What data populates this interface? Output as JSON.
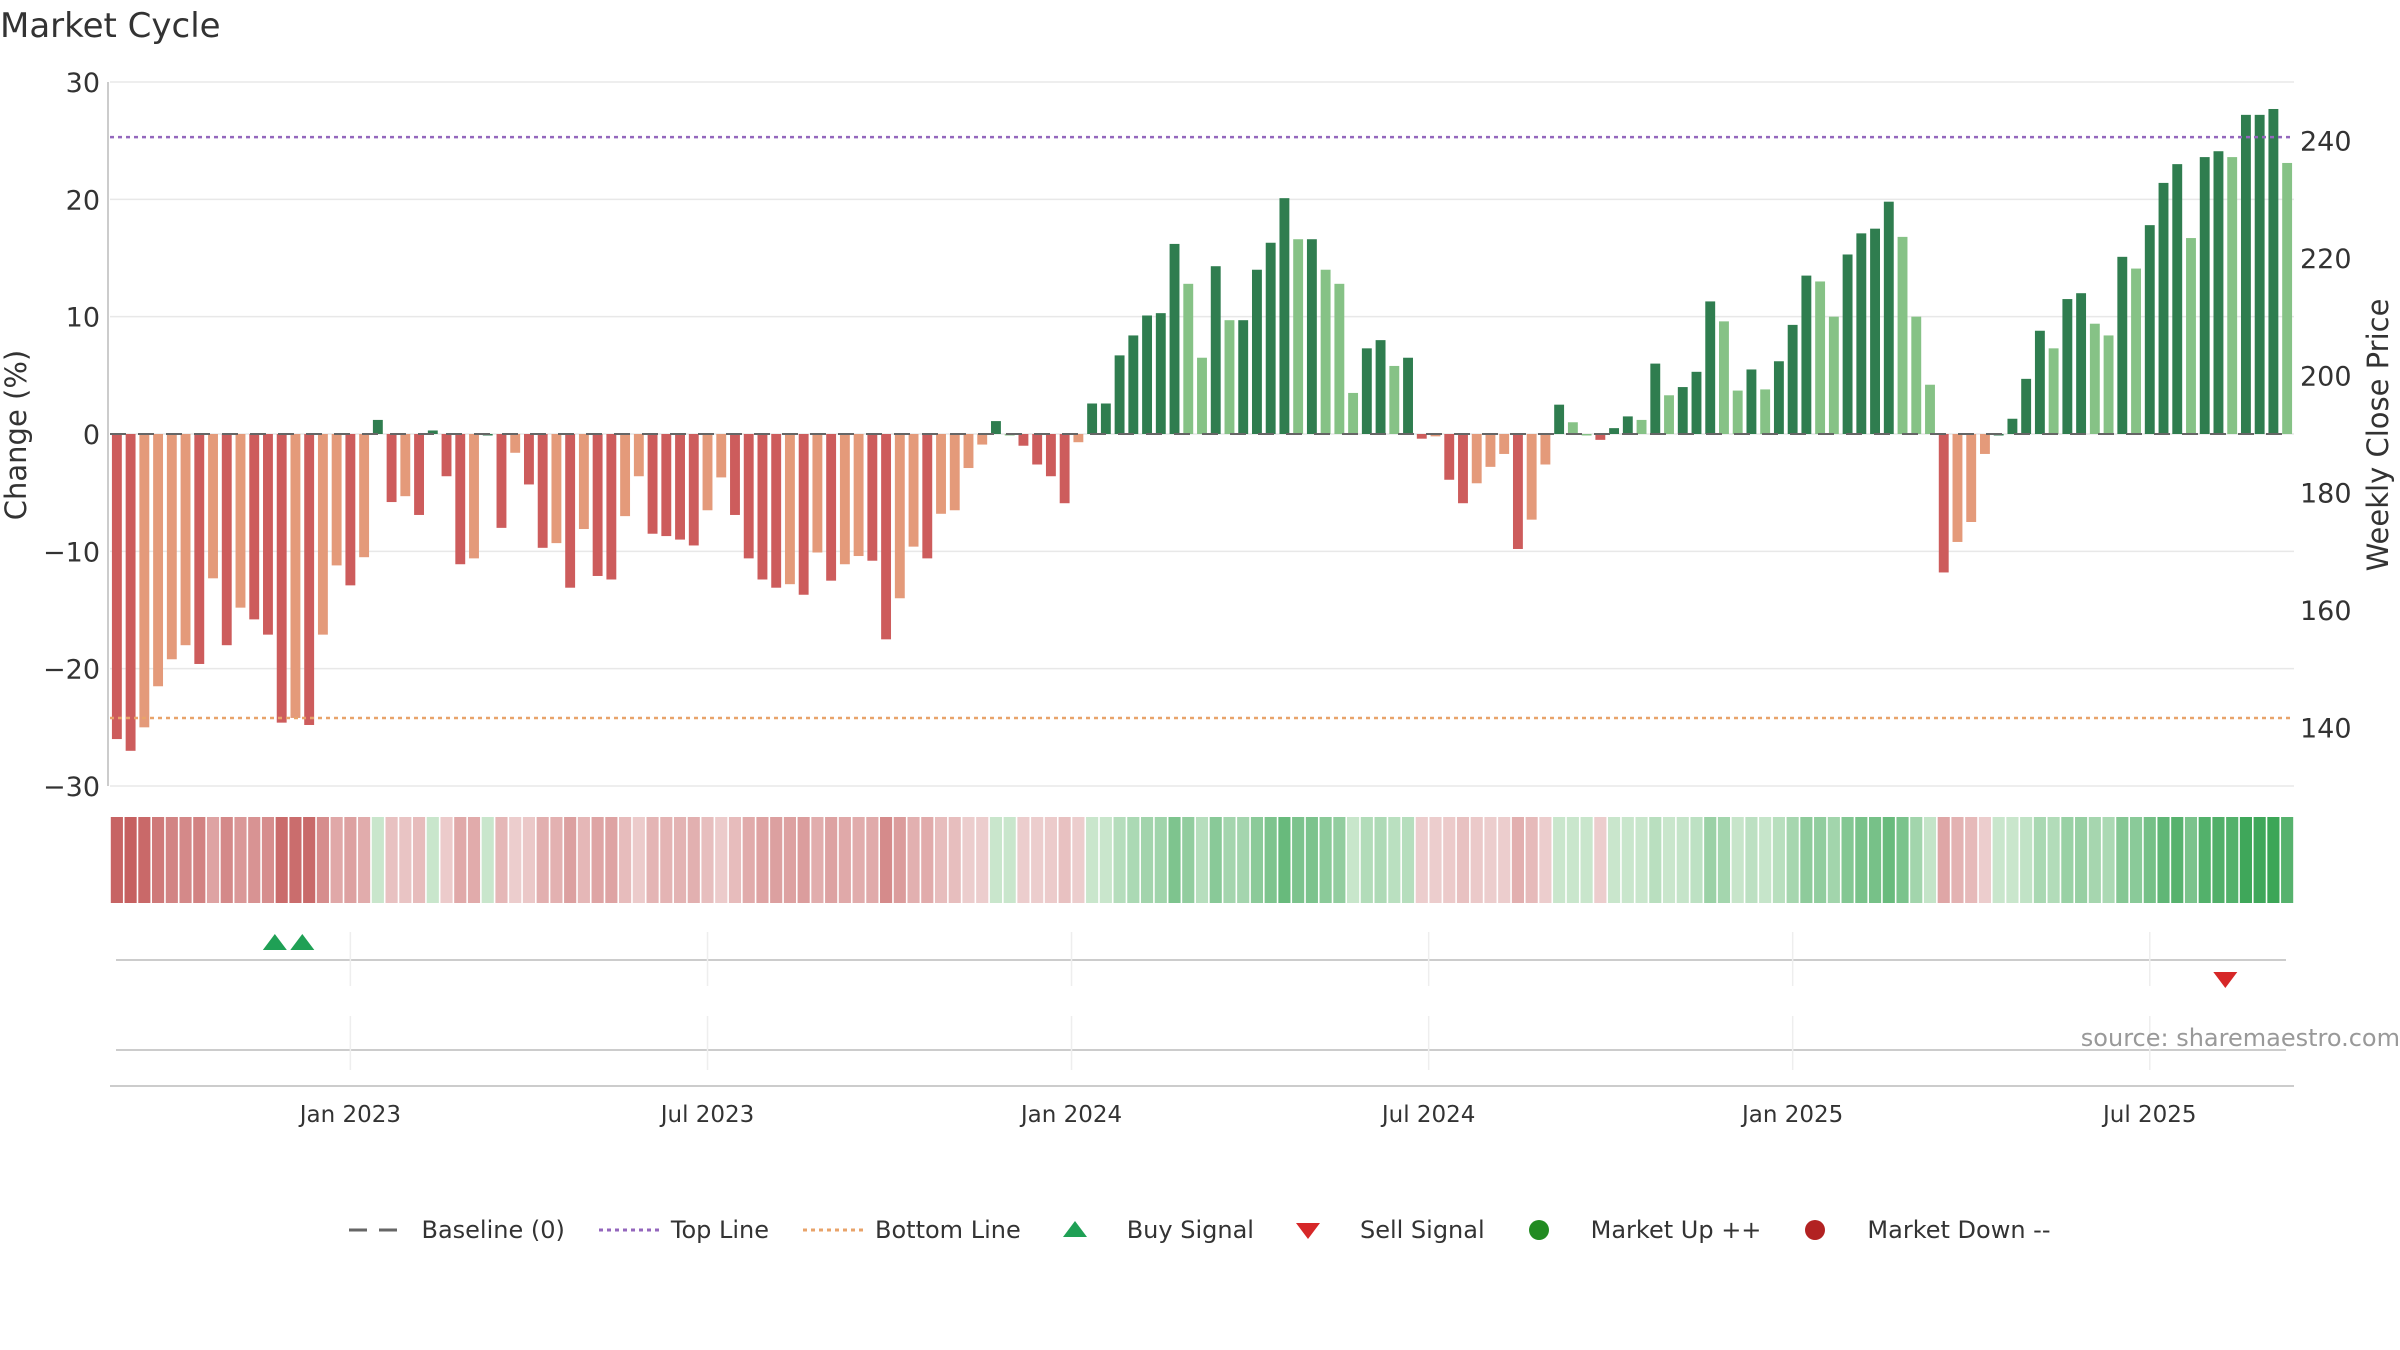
{
  "title": "Market Cycle",
  "source": "source: sharemaestro.com",
  "chart_data": {
    "type": "bar",
    "y_label": "Change (%)",
    "y2_label": "Weekly Close Price",
    "y_ticks": [
      "30",
      "20",
      "10",
      "0",
      "−10",
      "−20",
      "−30"
    ],
    "y_tick_values": [
      30,
      20,
      10,
      0,
      -10,
      -20,
      -30
    ],
    "ylim": [
      -30,
      30
    ],
    "y2_ticks": [
      "240",
      "220",
      "200",
      "180",
      "160",
      "140"
    ],
    "y2_tick_values": [
      240,
      220,
      200,
      180,
      160,
      140
    ],
    "y2lim": [
      130,
      250
    ],
    "x_ticks": [
      "Jan 2023",
      "Jul 2023",
      "Jan 2024",
      "Jul 2024",
      "Jan 2025",
      "Jul 2025"
    ],
    "x_tick_weeks": [
      17.5,
      43.5,
      70,
      96,
      122.5,
      148.5
    ],
    "top_line": 25.3,
    "bottom_line": -24.2,
    "values": [
      -26,
      -27,
      -25,
      -21.5,
      -19.2,
      -18,
      -19.6,
      -12.3,
      -18,
      -14.8,
      -15.8,
      -17.1,
      -24.6,
      -24.2,
      -24.8,
      -17.1,
      -11.2,
      -12.9,
      -10.5,
      1.2,
      -5.8,
      -5.3,
      -6.9,
      0.3,
      -3.6,
      -11.1,
      -10.6,
      0,
      -8,
      -1.6,
      -4.3,
      -9.7,
      -9.3,
      -13.1,
      -8.1,
      -12.1,
      -12.4,
      -7,
      -3.6,
      -8.5,
      -8.7,
      -9,
      -9.5,
      -6.5,
      -3.7,
      -6.9,
      -10.6,
      -12.4,
      -13.1,
      -12.8,
      -13.7,
      -10.1,
      -12.5,
      -11.1,
      -10.4,
      -10.8,
      -17.5,
      -14,
      -9.6,
      -10.6,
      -6.8,
      -6.5,
      -2.9,
      -0.9,
      1.1,
      0,
      -1,
      -2.6,
      -3.6,
      -5.9,
      -0.7,
      2.6,
      2.6,
      6.7,
      8.4,
      10.1,
      10.3,
      16.2,
      12.8,
      6.5,
      14.3,
      9.7,
      9.7,
      14,
      16.3,
      20.1,
      16.6,
      16.6,
      14,
      12.8,
      3.5,
      7.3,
      8,
      5.8,
      6.5,
      -0.4,
      -0.2,
      -3.9,
      -5.9,
      -4.2,
      -2.8,
      -1.7,
      -9.8,
      -7.3,
      -2.6,
      2.5,
      1,
      0,
      -0.5,
      0.5,
      1.5,
      1.2,
      6,
      3.3,
      4,
      5.3,
      11.3,
      9.6,
      3.7,
      5.5,
      3.8,
      6.2,
      9.3,
      13.5,
      13,
      10,
      15.3,
      17.1,
      17.5,
      19.8,
      16.8,
      10,
      4.2,
      -11.8,
      -9.2,
      -7.5,
      -1.7,
      0,
      1.3,
      4.7,
      8.8,
      7.3,
      11.5,
      12,
      9.4,
      8.4,
      15.1,
      14.1,
      17.8,
      21.4,
      23,
      16.7,
      23.6,
      24.1,
      23.6,
      27.2,
      27.2,
      27.7,
      23.1
    ],
    "x_tick_weeks_note": "",
    "buy_signal_weeks": [
      12,
      14
    ],
    "sell_signal_weeks": [
      154
    ],
    "colors": {
      "up_dark": "#2f7d4f",
      "up_light": "#86c286",
      "down_dark": "#cd5c5c",
      "down_light": "#e49a7a",
      "top_line": "#9467bd",
      "bottom_line": "#e8a36a",
      "buy": "#1fa055",
      "sell": "#d62728",
      "market_up": "#228b22",
      "market_down": "#b22222",
      "baseline": "#666666"
    }
  },
  "legend": {
    "baseline": "Baseline (0)",
    "top_line": "Top Line",
    "bottom_line": "Bottom Line",
    "buy": "Buy Signal",
    "sell": "Sell Signal",
    "market_up": "Market Up ++",
    "market_down": "Market Down --"
  }
}
